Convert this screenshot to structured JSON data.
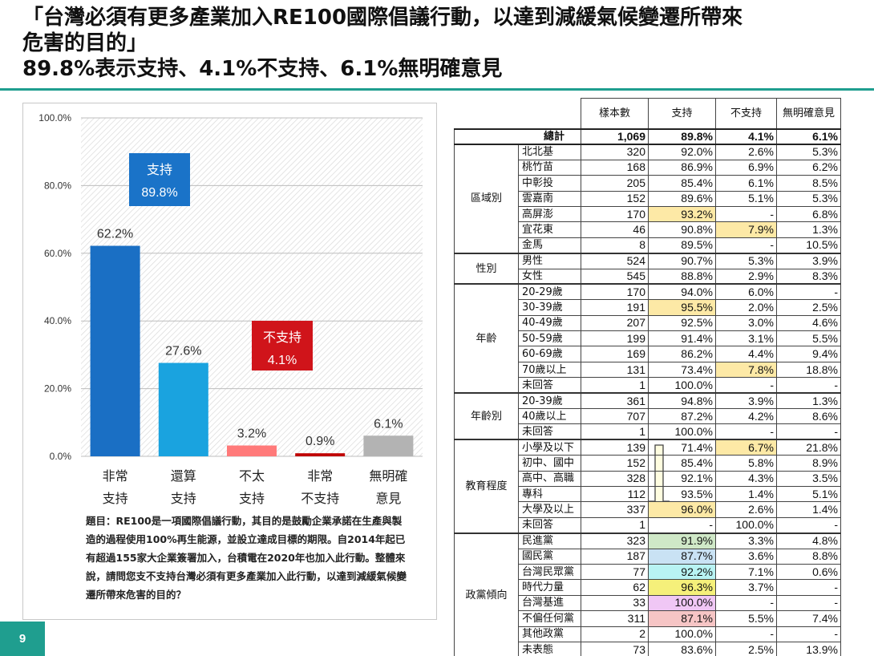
{
  "title": {
    "line1": "「台灣必須有更多產業加入RE100國際倡議行動，以達到減緩氣候變遷所帶來",
    "line2": "危害的目的」",
    "line3": "89.8%表示支持、4.1%不支持、6.1%無明確意見"
  },
  "page_number": "9",
  "question": "題目：RE100是一項國際倡議行動，其目的是鼓勵企業承諾在生產與製造的過程使用100%再生能源，並設立達成目標的期限。自2014年起已有超過155家大企業簽署加入，台積電在2020年也加入此行動。整體來說，請問您支不支持台灣必須有更多產業加入此行動，以達到減緩氣候變遷所帶來危害的目的？",
  "colors": {
    "accent": "#1f9e8f",
    "support_dark": "#1a6fc4",
    "support_light": "#1aa3df",
    "oppose_light": "#ff7a7a",
    "oppose_dark": "#c00000",
    "no_opinion": "#b3b3b3",
    "support_box": "#1a73c8",
    "oppose_box": "#d0141a"
  },
  "chart_data": {
    "type": "bar",
    "categories": [
      [
        "非常",
        "支持"
      ],
      [
        "還算",
        "支持"
      ],
      [
        "不太",
        "支持"
      ],
      [
        "非常",
        "不支持"
      ],
      [
        "無明確",
        "意見"
      ]
    ],
    "values": [
      62.2,
      27.6,
      3.2,
      0.9,
      6.1
    ],
    "value_labels": [
      "62.2%",
      "27.6%",
      "3.2%",
      "0.9%",
      "6.1%"
    ],
    "ylim": [
      0,
      100
    ],
    "yticks": [
      "0.0%",
      "20.0%",
      "40.0%",
      "60.0%",
      "80.0%",
      "100.0%"
    ],
    "ytick_values": [
      0,
      20,
      40,
      60,
      80,
      100
    ],
    "bar_colors": [
      "#1a6fc4",
      "#1aa3df",
      "#ff7a7a",
      "#c00000",
      "#b3b3b3"
    ],
    "annotations": [
      {
        "label": "支持",
        "value": "89.8%",
        "color": "#1a73c8"
      },
      {
        "label": "不支持",
        "value": "4.1%",
        "color": "#d0141a"
      }
    ],
    "grid": true
  },
  "table": {
    "headers": [
      "樣本數",
      "支持",
      "不支持",
      "無明確意見"
    ],
    "total": {
      "label": "總計",
      "values": [
        "1,069",
        "89.8%",
        "4.1%",
        "6.1%"
      ]
    },
    "groups": [
      {
        "name": "區域別",
        "rows": [
          {
            "label": "北北基",
            "values": [
              "320",
              "92.0%",
              "2.6%",
              "5.3%"
            ]
          },
          {
            "label": "桃竹苗",
            "values": [
              "168",
              "86.9%",
              "6.9%",
              "6.2%"
            ]
          },
          {
            "label": "中彰投",
            "values": [
              "205",
              "85.4%",
              "6.1%",
              "8.5%"
            ]
          },
          {
            "label": "雲嘉南",
            "values": [
              "152",
              "89.6%",
              "5.1%",
              "5.3%"
            ]
          },
          {
            "label": "高屏澎",
            "values": [
              "170",
              "93.2%",
              "-",
              "6.8%"
            ],
            "hl": [
              null,
              "y",
              null,
              null
            ]
          },
          {
            "label": "宜花東",
            "values": [
              "46",
              "90.8%",
              "7.9%",
              "1.3%"
            ],
            "hl": [
              null,
              null,
              "y",
              null
            ]
          },
          {
            "label": "金馬",
            "values": [
              "8",
              "89.5%",
              "-",
              "10.5%"
            ]
          }
        ]
      },
      {
        "name": "性別",
        "rows": [
          {
            "label": "男性",
            "values": [
              "524",
              "90.7%",
              "5.3%",
              "3.9%"
            ]
          },
          {
            "label": "女性",
            "values": [
              "545",
              "88.8%",
              "2.9%",
              "8.3%"
            ]
          }
        ]
      },
      {
        "name": "年齡",
        "rows": [
          {
            "label": "20-29歲",
            "values": [
              "170",
              "94.0%",
              "6.0%",
              "-"
            ]
          },
          {
            "label": "30-39歲",
            "values": [
              "191",
              "95.5%",
              "2.0%",
              "2.5%"
            ],
            "hl": [
              null,
              "y",
              null,
              null
            ]
          },
          {
            "label": "40-49歲",
            "values": [
              "207",
              "92.5%",
              "3.0%",
              "4.6%"
            ]
          },
          {
            "label": "50-59歲",
            "values": [
              "199",
              "91.4%",
              "3.1%",
              "5.5%"
            ]
          },
          {
            "label": "60-69歲",
            "values": [
              "169",
              "86.2%",
              "4.4%",
              "9.4%"
            ]
          },
          {
            "label": "70歲以上",
            "values": [
              "131",
              "73.4%",
              "7.8%",
              "18.8%"
            ],
            "hl": [
              null,
              null,
              "y",
              null
            ]
          },
          {
            "label": "未回答",
            "values": [
              "1",
              "100.0%",
              "-",
              "-"
            ]
          }
        ]
      },
      {
        "name": "年齡別",
        "rows": [
          {
            "label": "20-39歲",
            "values": [
              "361",
              "94.8%",
              "3.9%",
              "1.3%"
            ]
          },
          {
            "label": "40歲以上",
            "values": [
              "707",
              "87.2%",
              "4.2%",
              "8.6%"
            ]
          },
          {
            "label": "未回答",
            "values": [
              "1",
              "100.0%",
              "-",
              "-"
            ]
          }
        ]
      },
      {
        "name": "教育程度",
        "rows": [
          {
            "label": "小學及以下",
            "values": [
              "139",
              "71.4%",
              "6.7%",
              "21.8%"
            ],
            "hl": [
              null,
              null,
              "y",
              null
            ]
          },
          {
            "label": "初中、國中",
            "values": [
              "152",
              "85.4%",
              "5.8%",
              "8.9%"
            ]
          },
          {
            "label": "高中、高職",
            "values": [
              "328",
              "92.1%",
              "4.3%",
              "3.5%"
            ]
          },
          {
            "label": "專科",
            "values": [
              "112",
              "93.5%",
              "1.4%",
              "5.1%"
            ]
          },
          {
            "label": "大學及以上",
            "values": [
              "337",
              "96.0%",
              "2.6%",
              "1.4%"
            ],
            "hl": [
              null,
              "y",
              null,
              null
            ]
          },
          {
            "label": "未回答",
            "values": [
              "1",
              "-",
              "100.0%",
              "-"
            ]
          }
        ]
      },
      {
        "name": "政黨傾向",
        "rows": [
          {
            "label": "民進黨",
            "values": [
              "323",
              "91.9%",
              "3.3%",
              "4.8%"
            ],
            "hl": [
              null,
              "g",
              null,
              null
            ]
          },
          {
            "label": "國民黨",
            "values": [
              "187",
              "87.7%",
              "3.6%",
              "8.8%"
            ],
            "hl": [
              null,
              "b",
              null,
              null
            ]
          },
          {
            "label": "台灣民眾黨",
            "values": [
              "77",
              "92.2%",
              "7.1%",
              "0.6%"
            ],
            "hl": [
              null,
              "c",
              null,
              null
            ]
          },
          {
            "label": "時代力量",
            "values": [
              "62",
              "96.3%",
              "3.7%",
              "-"
            ],
            "hl": [
              null,
              "yy",
              null,
              null
            ]
          },
          {
            "label": "台灣基進",
            "values": [
              "33",
              "100.0%",
              "-",
              "-"
            ],
            "hl": [
              null,
              "p",
              null,
              null
            ]
          },
          {
            "label": "不偏任何黨",
            "values": [
              "311",
              "87.1%",
              "5.5%",
              "7.4%"
            ],
            "hl": [
              null,
              "r",
              null,
              null
            ]
          },
          {
            "label": "其他政黨",
            "values": [
              "2",
              "100.0%",
              "-",
              "-"
            ]
          },
          {
            "label": "未表態",
            "values": [
              "73",
              "83.6%",
              "2.5%",
              "13.9%"
            ]
          }
        ]
      }
    ]
  }
}
